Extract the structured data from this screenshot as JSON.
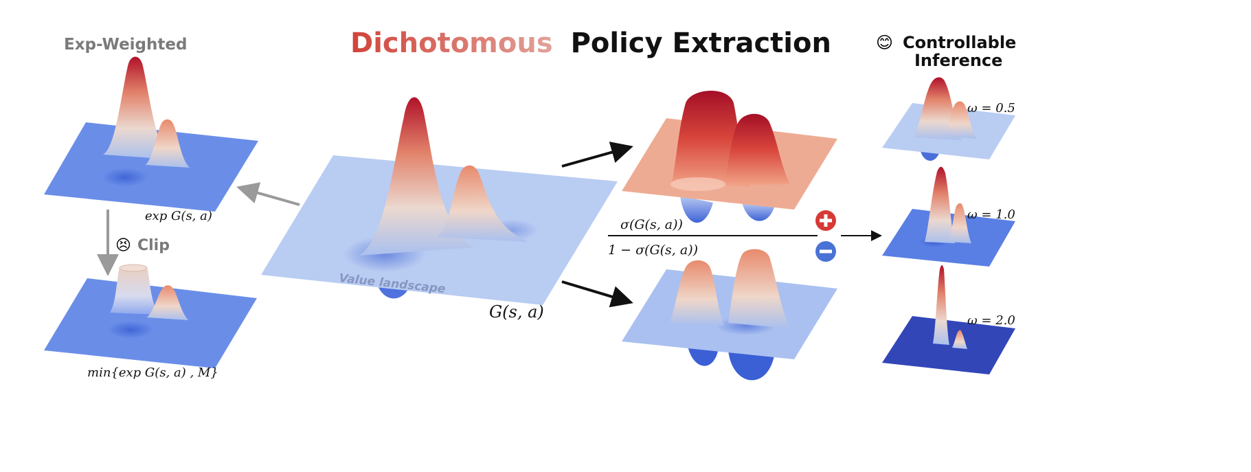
{
  "title": {
    "word1": "Dichotomous",
    "word2": "Policy Extraction"
  },
  "left": {
    "heading": "Exp-Weighted",
    "top_label": "exp G(s, a)",
    "clip_emoji": "😣",
    "clip_label": "Clip",
    "bottom_label": "min{exp G(s, a) , M}"
  },
  "center": {
    "plane_text": "Value landscape",
    "label": "G(s, a)"
  },
  "middle": {
    "pos_formula": "σ(G(s, a))",
    "neg_formula": "1 − σ(G(s, a))",
    "plus_icon": "plus-circle-icon",
    "minus_icon": "minus-circle-icon"
  },
  "right": {
    "emoji": "😊",
    "heading_line1": "Controllable",
    "heading_line2": "Inference",
    "omegas": [
      "ω = 0.5",
      "ω = 1.0",
      "ω = 2.0"
    ]
  },
  "colors": {
    "title_red": "#d1433a",
    "title_blue": "#6d8ee8",
    "grey_arrow": "#9a9a9a",
    "plus": "#d63a36",
    "minus": "#4a72d6"
  }
}
